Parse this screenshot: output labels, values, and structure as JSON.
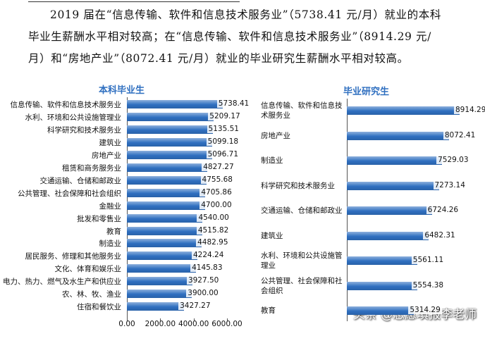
{
  "paragraph": "2019 届在“信息传输、软件和信息技术服务业”（5738.41 元/月）就业的本科毕业生薪酬水平相对较高；在“信息传输、软件和信息技术服务业”（8914.29 元/月）和“房地产业”（8072.41 元/月）就业的毕业研究生薪酬水平相对较高。",
  "watermark": "头条 @志愿填报李老师",
  "chart_data": [
    {
      "type": "bar",
      "orientation": "horizontal",
      "title": "本科毕业生",
      "color": "#2f6fc0",
      "categories": [
        "信息传输、软件和信息技术服务业",
        "水利、环境和公共设施管理业",
        "科学研究和技术服务业",
        "建筑业",
        "房地产业",
        "租赁和商务服务业",
        "交通运输、仓储和邮政业",
        "公共管理、社会保障和社会组织",
        "金融业",
        "批发和零售业",
        "教育",
        "制造业",
        "居民服务、修理和其他服务业",
        "文化、体育和娱乐业",
        "电力、热力、燃气及水生产和供应业",
        "农、林、牧、渔业",
        "住宿和餐饮业"
      ],
      "values": [
        5738.41,
        5209.17,
        5135.51,
        5099.18,
        5096.71,
        4827.27,
        4755.68,
        4705.86,
        4700.0,
        4540.0,
        4515.82,
        4482.95,
        4224.24,
        4145.83,
        3927.5,
        3900.0,
        3427.27
      ],
      "value_labels": [
        "5738.41",
        "5209.17",
        "5135.51",
        "5099.18",
        "5096.71",
        "4827.27",
        "4755.68",
        "4705.86",
        "4700.00",
        "4540.00",
        "4515.82",
        "4482.95",
        "4224.24",
        "4145.83",
        "3927.50",
        "3900.00",
        "3427.27"
      ],
      "xlim": [
        0,
        6000
      ],
      "xticks": [
        {
          "value": 0,
          "label": "0.00"
        },
        {
          "value": 2000,
          "label": "2000.00"
        },
        {
          "value": 4000,
          "label": "4000.00"
        },
        {
          "value": 6000,
          "label": "6000.00"
        }
      ]
    },
    {
      "type": "bar",
      "orientation": "horizontal",
      "title": "毕业研究生",
      "color": "#2f6fc0",
      "categories": [
        "信息传输、软件和信息技术服务业",
        "房地产业",
        "制造业",
        "科学研究和技术服务业",
        "交通运输、仓储和邮政业",
        "建筑业",
        "水利、环境和公共设施管理业",
        "公共管理、社会保障和社会组织",
        "教育"
      ],
      "values": [
        8914.29,
        8072.41,
        7529.03,
        7273.14,
        6724.26,
        6482.31,
        5561.11,
        5554.38,
        5314.29
      ],
      "xlim": [
        0,
        9000
      ]
    }
  ]
}
